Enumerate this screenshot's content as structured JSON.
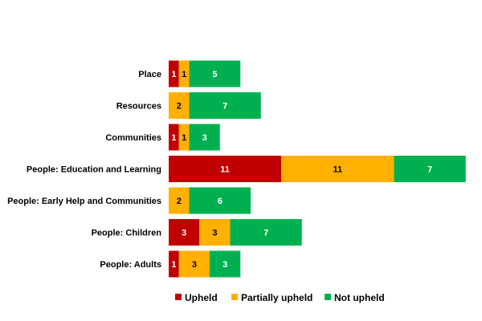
{
  "chart_data": {
    "type": "bar",
    "orientation": "horizontal",
    "stacked": true,
    "categories": [
      "Place",
      "Resources",
      "Communities",
      "People: Education and Learning",
      "People: Early Help and Communities",
      "People: Children",
      "People: Adults"
    ],
    "series": [
      {
        "name": "Upheld",
        "color": "#c00000",
        "values": [
          1,
          0,
          1,
          11,
          0,
          3,
          1
        ]
      },
      {
        "name": "Partially upheld",
        "color": "#ffb000",
        "values": [
          1,
          2,
          1,
          11,
          2,
          3,
          3
        ]
      },
      {
        "name": "Not upheld",
        "color": "#00b050",
        "values": [
          5,
          7,
          3,
          7,
          6,
          7,
          3
        ]
      }
    ],
    "title": "",
    "xlabel": "",
    "ylabel": "",
    "xlim": [
      0,
      29
    ],
    "grid": false,
    "legend": "bottom"
  }
}
